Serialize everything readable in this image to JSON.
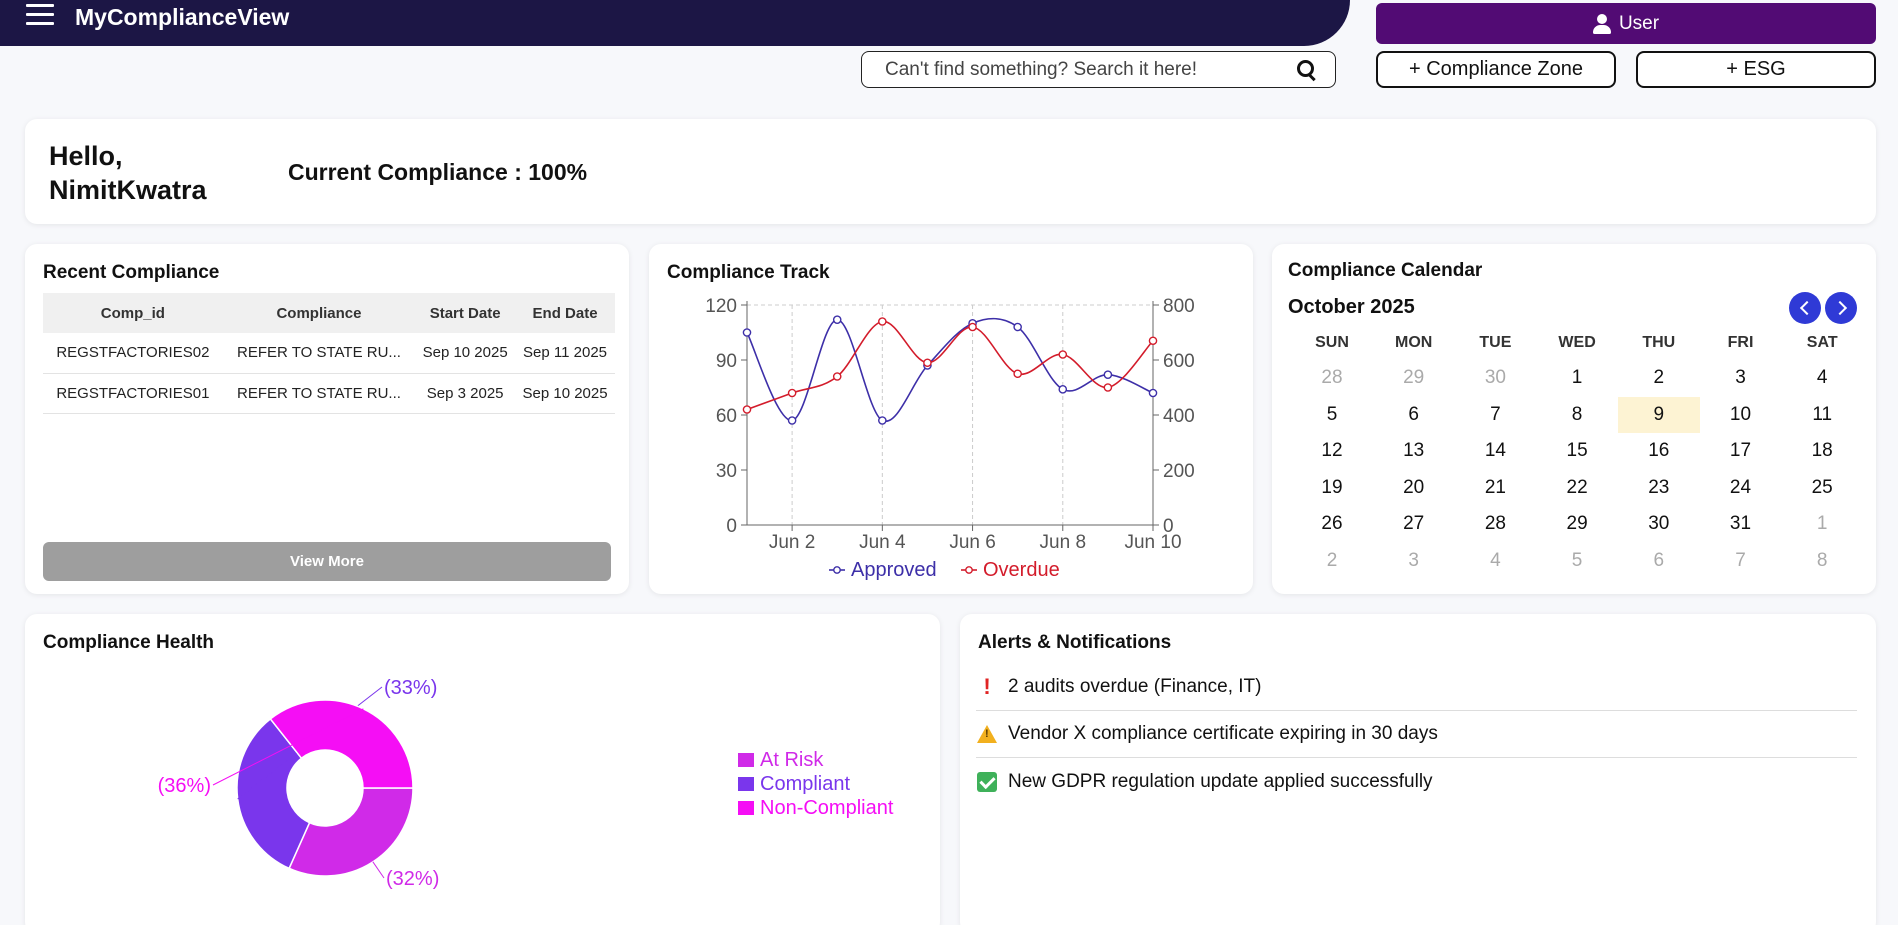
{
  "app": {
    "title": "MyComplianceView"
  },
  "header": {
    "user_label": "User",
    "search_placeholder": "Can't find something? Search it here!",
    "compliance_zone_label": "+ Compliance Zone",
    "esg_label": "+ ESG"
  },
  "greeting": {
    "hello": "Hello,",
    "name": "NimitKwatra",
    "current_compliance": "Current Compliance : 100%"
  },
  "recent_compliance": {
    "title": "Recent Compliance",
    "columns": [
      "Comp_id",
      "Compliance",
      "Start Date",
      "End Date"
    ],
    "rows": [
      [
        "REGSTFACTORIES02",
        "REFER TO STATE RU...",
        "Sep 10 2025",
        "Sep 11 2025"
      ],
      [
        "REGSTFACTORIES01",
        "REFER TO STATE RU...",
        "Sep 3 2025",
        "Sep 10 2025"
      ]
    ],
    "view_more": "View More"
  },
  "compliance_track": {
    "title": "Compliance Track"
  },
  "chart_data": [
    {
      "type": "line",
      "title": "Compliance Track",
      "x": [
        "Jun 1",
        "Jun 2",
        "Jun 3",
        "Jun 4",
        "Jun 5",
        "Jun 6",
        "Jun 7",
        "Jun 8",
        "Jun 9",
        "Jun 10"
      ],
      "x_tick_labels": [
        "Jun 2",
        "Jun 4",
        "Jun 6",
        "Jun 8",
        "Jun 10"
      ],
      "series": [
        {
          "name": "Approved",
          "axis": "left",
          "color": "#3d2fa8",
          "values": [
            105,
            57,
            112,
            57,
            87,
            110,
            108,
            74,
            82,
            72
          ]
        },
        {
          "name": "Overdue",
          "axis": "right",
          "color": "#d31c2b",
          "values": [
            420,
            480,
            540,
            740,
            590,
            720,
            550,
            620,
            500,
            670
          ]
        }
      ],
      "left_axis": {
        "min": 0,
        "max": 120,
        "ticks": [
          0,
          30,
          60,
          90,
          120
        ]
      },
      "right_axis": {
        "min": 0,
        "max": 800,
        "ticks": [
          0,
          200,
          400,
          600,
          800
        ]
      },
      "legend_position": "bottom",
      "grid": "vertical dashed"
    },
    {
      "type": "pie",
      "title": "Compliance Health",
      "labels": [
        "At Risk",
        "Compliant",
        "Non-Compliant"
      ],
      "values": [
        32,
        33,
        36
      ],
      "value_labels": [
        "(32%)",
        "(33%)",
        "(36%)"
      ],
      "colors": [
        "#d02ae8",
        "#7a36ec",
        "#f50ef5"
      ],
      "donut": true,
      "legend_position": "right"
    }
  ],
  "calendar": {
    "title": "Compliance Calendar",
    "month_label": "October 2025",
    "weekdays": [
      "SUN",
      "MON",
      "TUE",
      "WED",
      "THU",
      "FRI",
      "SAT"
    ],
    "weeks": [
      [
        "28",
        "29",
        "30",
        "1",
        "2",
        "3",
        "4"
      ],
      [
        "5",
        "6",
        "7",
        "8",
        "9",
        "10",
        "11"
      ],
      [
        "12",
        "13",
        "14",
        "15",
        "16",
        "17",
        "18"
      ],
      [
        "19",
        "20",
        "21",
        "22",
        "23",
        "24",
        "25"
      ],
      [
        "26",
        "27",
        "28",
        "29",
        "30",
        "31",
        "1"
      ],
      [
        "2",
        "3",
        "4",
        "5",
        "6",
        "7",
        "8"
      ]
    ],
    "today": "9"
  },
  "compliance_health": {
    "title": "Compliance Health"
  },
  "alerts": {
    "title": "Alerts & Notifications",
    "items": [
      {
        "icon": "exclamation-icon",
        "text": "2 audits overdue (Finance, IT)"
      },
      {
        "icon": "warning-icon",
        "text": "Vendor X compliance certificate expiring in 30 days"
      },
      {
        "icon": "check-icon",
        "text": "New GDPR regulation update applied successfully"
      }
    ]
  }
}
